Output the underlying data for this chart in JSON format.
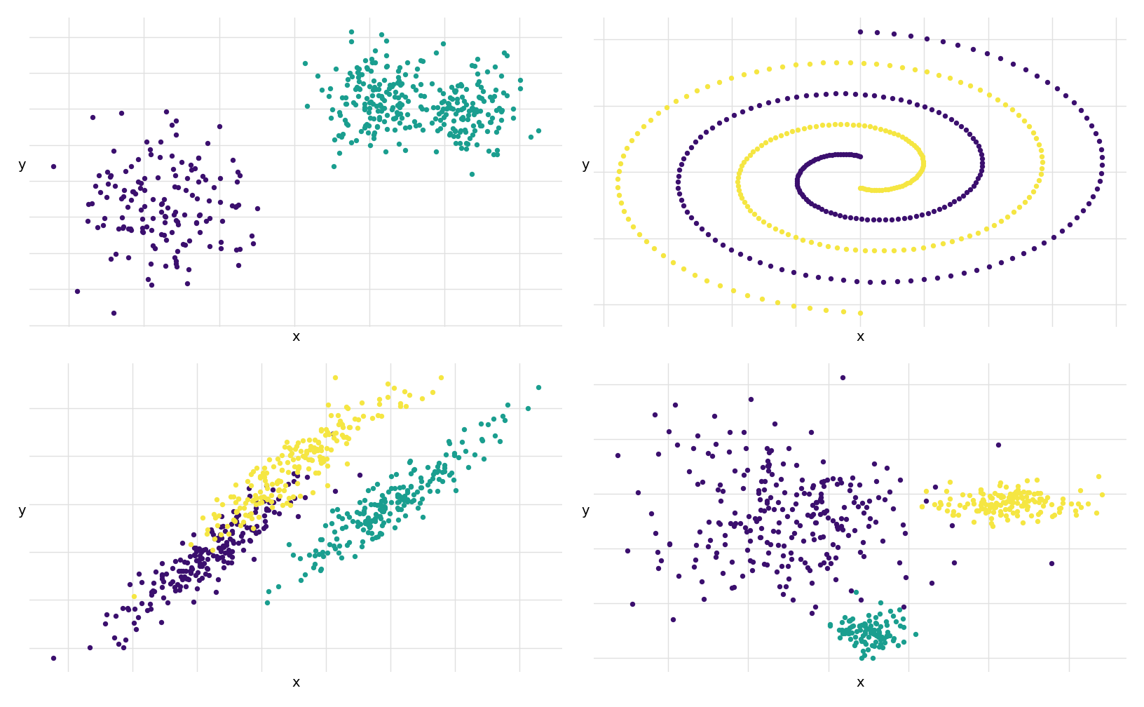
{
  "colors": {
    "teal": "#1a9e8f",
    "purple": "#3b0f6e",
    "yellow": "#f5e642"
  },
  "background": "#ffffff",
  "panel_bg": "#ffffff",
  "point_size": 28,
  "alpha": 1.0,
  "xlabel": "x",
  "ylabel": "y",
  "grid_color": "#e0e0e0",
  "grid_linewidth": 1.0,
  "seed": 42
}
